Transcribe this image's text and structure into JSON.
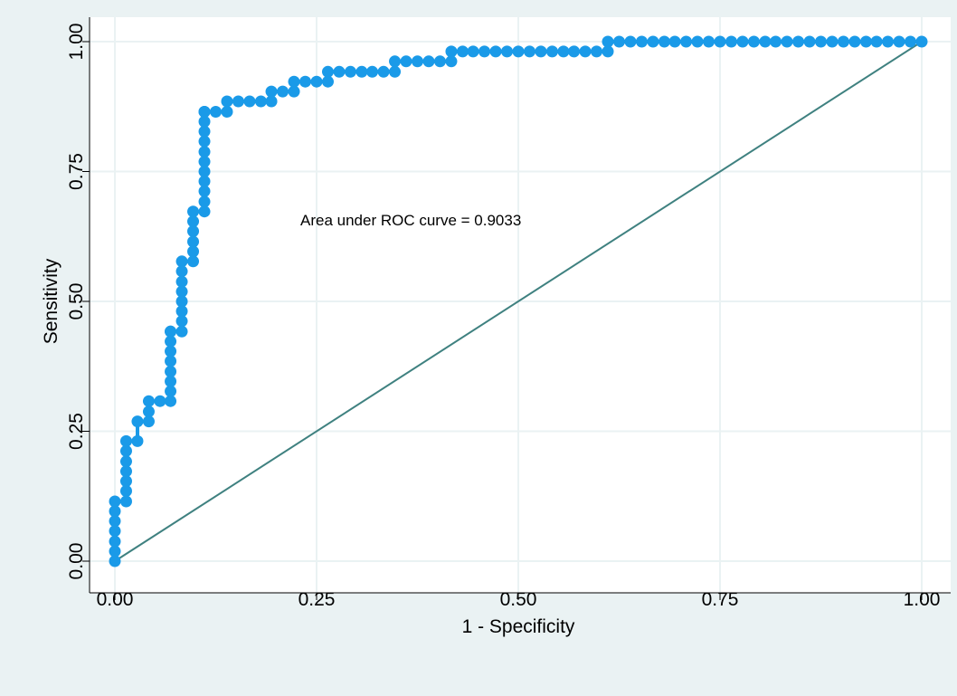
{
  "chart_data": {
    "type": "line",
    "title": "",
    "xlabel": "1 - Specificity",
    "ylabel": "Sensitivity",
    "xlim": [
      0,
      1
    ],
    "ylim": [
      0,
      1
    ],
    "x_ticks": [
      "0.00",
      "0.25",
      "0.50",
      "0.75",
      "1.00"
    ],
    "y_ticks": [
      "0.00",
      "0.25",
      "0.50",
      "0.75",
      "1.00"
    ],
    "grid": true,
    "annotation": "Area under ROC curve = 0.9033",
    "colors": {
      "background": "#eaf2f3",
      "plot_area": "#ffffff",
      "grid": "#eaf2f3",
      "roc_points": "#1a9ae8",
      "reference_line": "#3f8180"
    },
    "series": [
      {
        "style": "connected-markers",
        "x": [
          0,
          0,
          0,
          0,
          0,
          0,
          0,
          0.014,
          0.014,
          0.014,
          0.014,
          0.014,
          0.014,
          0.014,
          0.028,
          0.028,
          0.042,
          0.042,
          0.042,
          0.056,
          0.069,
          0.069,
          0.069,
          0.069,
          0.069,
          0.069,
          0.069,
          0.069,
          0.069,
          0.083,
          0.083,
          0.083,
          0.083,
          0.083,
          0.083,
          0.083,
          0.083,
          0.097,
          0.097,
          0.097,
          0.097,
          0.097,
          0.097,
          0.111,
          0.111,
          0.111,
          0.111,
          0.111,
          0.111,
          0.111,
          0.111,
          0.111,
          0.111,
          0.111,
          0.111,
          0.125,
          0.139,
          0.139,
          0.153,
          0.167,
          0.181,
          0.194,
          0.194,
          0.208,
          0.222,
          0.222,
          0.236,
          0.25,
          0.264,
          0.264,
          0.278,
          0.292,
          0.306,
          0.319,
          0.333,
          0.347,
          0.347,
          0.361,
          0.375,
          0.389,
          0.403,
          0.417,
          0.417,
          0.431,
          0.444,
          0.458,
          0.472,
          0.486,
          0.5,
          0.514,
          0.528,
          0.542,
          0.556,
          0.569,
          0.583,
          0.597,
          0.611,
          0.611,
          0.625,
          0.639,
          0.653,
          0.667,
          0.681,
          0.694,
          0.708,
          0.722,
          0.736,
          0.75,
          0.764,
          0.778,
          0.792,
          0.806,
          0.819,
          0.833,
          0.847,
          0.861,
          0.875,
          0.889,
          0.903,
          0.917,
          0.931,
          0.944,
          0.958,
          0.972,
          0.986,
          1
        ],
        "y": [
          0,
          0.019,
          0.038,
          0.058,
          0.077,
          0.096,
          0.115,
          0.115,
          0.135,
          0.154,
          0.173,
          0.192,
          0.212,
          0.231,
          0.231,
          0.269,
          0.269,
          0.288,
          0.308,
          0.308,
          0.308,
          0.327,
          0.346,
          0.365,
          0.385,
          0.404,
          0.423,
          0.442,
          0.442,
          0.442,
          0.462,
          0.481,
          0.5,
          0.519,
          0.538,
          0.558,
          0.577,
          0.577,
          0.596,
          0.615,
          0.635,
          0.654,
          0.673,
          0.673,
          0.692,
          0.712,
          0.731,
          0.75,
          0.769,
          0.788,
          0.808,
          0.827,
          0.846,
          0.865,
          0.865,
          0.865,
          0.865,
          0.885,
          0.885,
          0.885,
          0.885,
          0.885,
          0.904,
          0.904,
          0.904,
          0.923,
          0.923,
          0.923,
          0.923,
          0.942,
          0.942,
          0.942,
          0.942,
          0.942,
          0.942,
          0.942,
          0.962,
          0.962,
          0.962,
          0.962,
          0.962,
          0.962,
          0.981,
          0.981,
          0.981,
          0.981,
          0.981,
          0.981,
          0.981,
          0.981,
          0.981,
          0.981,
          0.981,
          0.981,
          0.981,
          0.981,
          0.981,
          1,
          1,
          1,
          1,
          1,
          1,
          1,
          1,
          1,
          1,
          1,
          1,
          1,
          1,
          1,
          1,
          1,
          1,
          1,
          1,
          1,
          1,
          1,
          1,
          1,
          1,
          1,
          1,
          1
        ]
      },
      {
        "style": "reference-line",
        "x": [
          0,
          1
        ],
        "y": [
          0,
          1
        ]
      }
    ]
  }
}
